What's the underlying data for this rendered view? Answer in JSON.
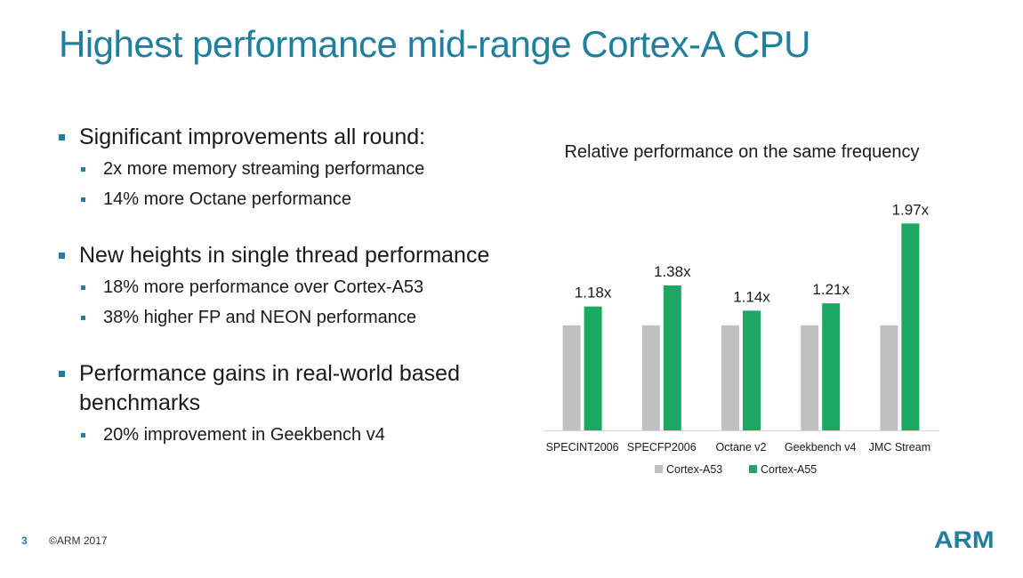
{
  "slide": {
    "title": "Highest performance mid-range Cortex-A CPU",
    "bullets": [
      {
        "text": "Significant improvements all round:",
        "sub": [
          "2x more memory streaming performance",
          "14% more Octane performance"
        ]
      },
      {
        "text": "New heights in single thread performance",
        "sub": [
          "18% more performance over Cortex-A53",
          "38% higher FP and NEON performance"
        ]
      },
      {
        "text": "Performance gains in real-world based benchmarks",
        "sub": [
          "20% improvement in Geekbench v4"
        ]
      }
    ]
  },
  "footer": {
    "page_number": "3",
    "copyright": "©ARM 2017",
    "logo_text": "ARM"
  },
  "chart_data": {
    "type": "bar",
    "title": "Relative performance on the same frequency",
    "categories": [
      "SPECINT2006",
      "SPECFP2006",
      "Octane v2",
      "Geekbench v4",
      "JMC Stream"
    ],
    "series": [
      {
        "name": "Cortex-A53",
        "color": "#c0c0c0",
        "values": [
          1.0,
          1.0,
          1.0,
          1.0,
          1.0
        ]
      },
      {
        "name": "Cortex-A55",
        "color": "#1aa862",
        "values": [
          1.18,
          1.38,
          1.14,
          1.21,
          1.97
        ]
      }
    ],
    "data_labels": {
      "Cortex-A55": [
        "1.18x",
        "1.38x",
        "1.14x",
        "1.21x",
        "1.97x"
      ]
    },
    "ylim": [
      0,
      2.1
    ],
    "grid": false,
    "y_axis_shown": false,
    "legend_position": "bottom"
  }
}
